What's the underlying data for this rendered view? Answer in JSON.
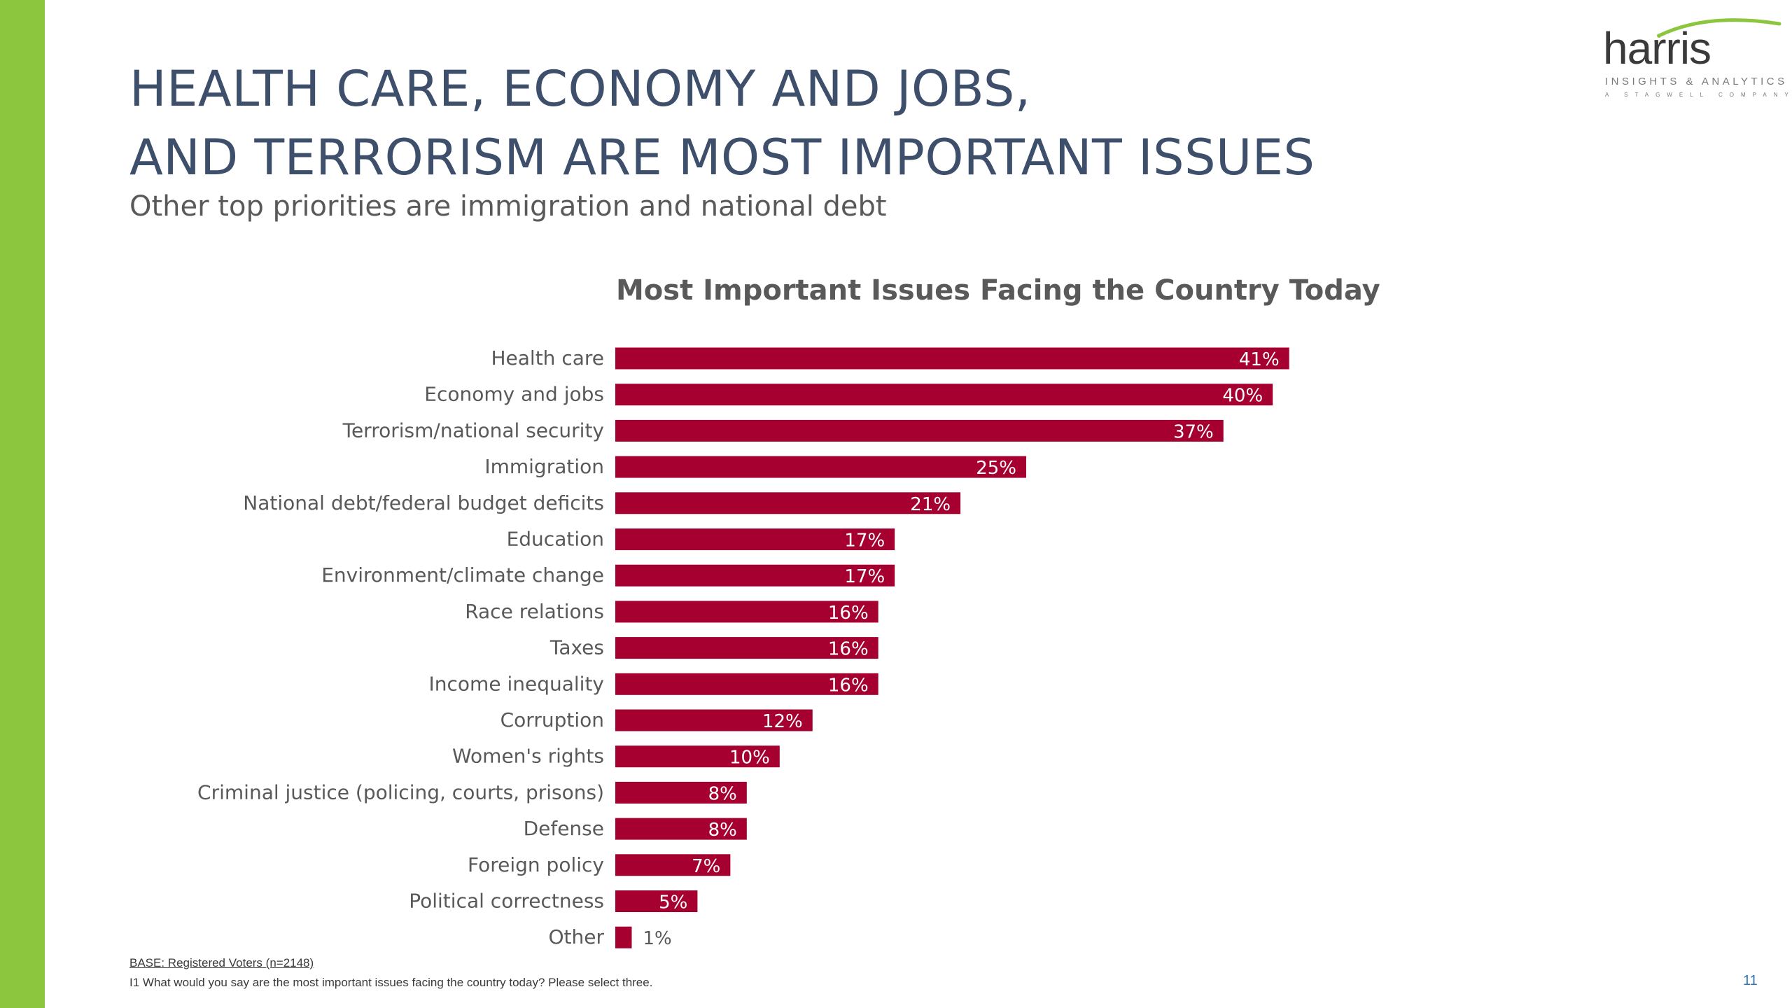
{
  "slide": {
    "title_lines": [
      "HEALTH CARE, ECONOMY AND JOBS,",
      "AND TERRORISM ARE MOST IMPORTANT ISSUES"
    ],
    "subtitle": "Other top priorities are immigration and national debt",
    "base_note": "BASE: Registered Voters (n=2148)",
    "question_note": "I1 What would you say are the most important issues facing the country today? Please select three.",
    "page_number": "11",
    "accent_color": "#8cc63f"
  },
  "logo": {
    "wordmark": "harris",
    "tagline": "INSIGHTS & ANALYTICS",
    "subtagline": "A STAGWELL COMPANY"
  },
  "chart_data": {
    "type": "bar",
    "orientation": "horizontal",
    "title": "Most Important Issues Facing the Country Today",
    "categories": [
      "Health care",
      "Economy and jobs",
      "Terrorism/national security",
      "Immigration",
      "National debt/federal budget deficits",
      "Education",
      "Environment/climate change",
      "Race relations",
      "Taxes",
      "Income inequality",
      "Corruption",
      "Women's rights",
      "Criminal justice (policing, courts, prisons)",
      "Defense",
      "Foreign policy",
      "Political correctness",
      "Other"
    ],
    "values": [
      41,
      40,
      37,
      25,
      21,
      17,
      17,
      16,
      16,
      16,
      12,
      10,
      8,
      8,
      7,
      5,
      1
    ],
    "value_labels": [
      "41%",
      "40%",
      "37%",
      "25%",
      "21%",
      "17%",
      "17%",
      "16%",
      "16%",
      "16%",
      "12%",
      "10%",
      "8%",
      "8%",
      "7%",
      "5%",
      "1%"
    ],
    "unit": "%",
    "bar_color": "#a50030",
    "grid": false,
    "legend": "none"
  }
}
